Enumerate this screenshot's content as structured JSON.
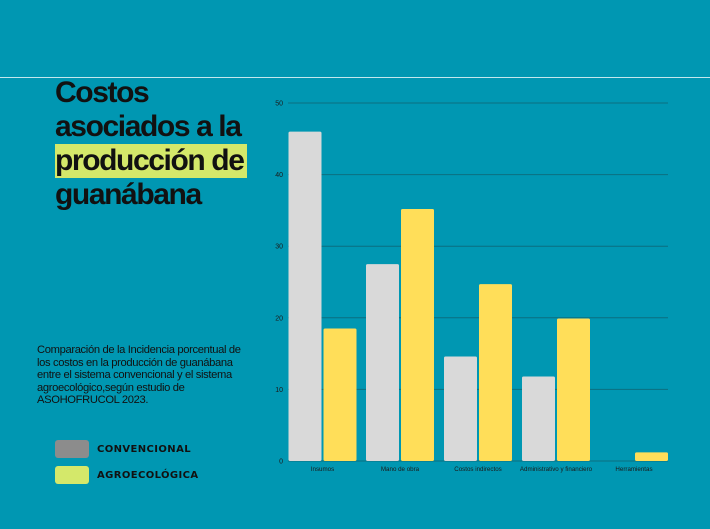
{
  "slide": {
    "title_part1": "Costos asociados a la ",
    "title_highlight": "producción de",
    "title_part2": " guanábana",
    "description": "Comparación de la Incidencia porcentual de los costos en la producción de guanábana entre el sistema convencional y el sistema agroecológico,según estudio de ASOHOFRUCOL 2023.",
    "colors": {
      "background": "#0097b2",
      "highlight": "#d4e86a",
      "convencional_bar": "#d9d9d9",
      "agroecologica_bar": "#ffde59",
      "convencional_legend": "#8c8c8c",
      "agroecologica_legend": "#d4e86a"
    }
  },
  "legend": {
    "convencional": "CONVENCIONAL",
    "agroecologica": "AGROECOLÓGICA"
  },
  "chart_data": {
    "type": "bar",
    "categories": [
      "Insumos",
      "Mano de obra",
      "Costos indirectos",
      "Administrativo y financiero",
      "Herramientas"
    ],
    "series": [
      {
        "name": "CONVENCIONAL",
        "values": [
          46,
          27.5,
          14.6,
          11.8,
          0
        ]
      },
      {
        "name": "AGROECOLÓGICA",
        "values": [
          18.5,
          35.2,
          24.7,
          19.9,
          1.2
        ]
      }
    ],
    "yticks": [
      "0",
      "10",
      "20",
      "30",
      "40",
      "50"
    ],
    "ylim": [
      0,
      50
    ],
    "grid": true,
    "legend_position": "bottom-left"
  }
}
